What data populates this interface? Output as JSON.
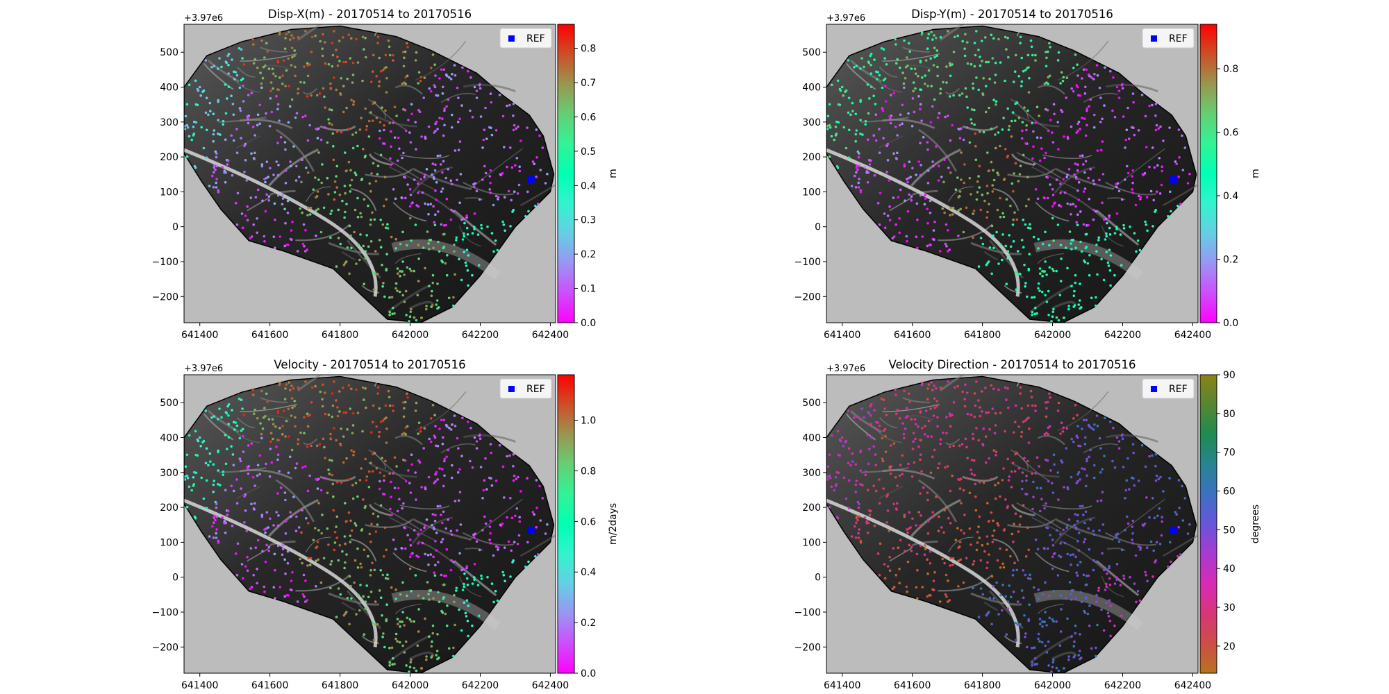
{
  "figure": {
    "legend_label": "REF",
    "offset_label": "+3.97e6",
    "xlim": [
      641355,
      642415
    ],
    "ylim": [
      -275,
      580
    ],
    "x_ticks": [
      641400,
      641600,
      641800,
      642000,
      642200,
      642400
    ],
    "x_tick_labels": [
      "641400",
      "641600",
      "641800",
      "642000",
      "642200",
      "642400"
    ],
    "y_ticks": [
      -200,
      -100,
      0,
      100,
      200,
      300,
      400,
      500
    ],
    "y_tick_labels": [
      "−200",
      "−100",
      "0",
      "100",
      "200",
      "300",
      "400",
      "500"
    ],
    "colors": {
      "no_data_background": "#bcbcbc",
      "terrain_dark": "#1c1c1c",
      "ref_marker": "#0000ff"
    }
  },
  "chart_data": [
    {
      "type": "scatter",
      "title": "Disp-X(m) - 20170514 to 20170516",
      "colorbar": {
        "label": "m",
        "min": 0,
        "max": 0.87,
        "colormap": "rainbow",
        "ticks": [
          0,
          0.1,
          0.2,
          0.3,
          0.4,
          0.5,
          0.6,
          0.7,
          0.8
        ],
        "tick_labels": [
          "0.0",
          "0.1",
          "0.2",
          "0.3",
          "0.4",
          "0.5",
          "0.6",
          "0.7",
          "0.8"
        ]
      },
      "ref_point": {
        "x": 642345,
        "y": 135
      },
      "zones": [
        {
          "x": 641420,
          "y": 350,
          "rx": 55,
          "ry": 150,
          "value": 0.3
        },
        {
          "x": 641850,
          "y": 420,
          "rx": 160,
          "ry": 120,
          "value": 0.72
        },
        {
          "x": 641600,
          "y": 200,
          "rx": 150,
          "ry": 120,
          "value": 0.15
        },
        {
          "x": 641800,
          "y": 130,
          "rx": 130,
          "ry": 110,
          "value": 0.65
        },
        {
          "x": 642130,
          "y": 200,
          "rx": 180,
          "ry": 180,
          "value": 0.1
        },
        {
          "x": 642000,
          "y": -80,
          "rx": 150,
          "ry": 90,
          "value": 0.62
        },
        {
          "x": 642250,
          "y": -60,
          "rx": 130,
          "ry": 100,
          "value": 0.4
        },
        {
          "x": 641600,
          "y": -10,
          "rx": 100,
          "ry": 50,
          "value": 0.05
        }
      ]
    },
    {
      "type": "scatter",
      "title": "Disp-Y(m) - 20170514 to 20170516",
      "colorbar": {
        "label": "m",
        "min": 0,
        "max": 0.94,
        "colormap": "rainbow",
        "ticks": [
          0,
          0.2,
          0.4,
          0.6,
          0.8
        ],
        "tick_labels": [
          "0.0",
          "0.2",
          "0.4",
          "0.6",
          "0.8"
        ]
      },
      "ref_point": {
        "x": 642345,
        "y": 135
      },
      "zones": [
        {
          "x": 641420,
          "y": 350,
          "rx": 55,
          "ry": 150,
          "value": 0.55
        },
        {
          "x": 641850,
          "y": 420,
          "rx": 160,
          "ry": 120,
          "value": 0.62
        },
        {
          "x": 641600,
          "y": 200,
          "rx": 150,
          "ry": 120,
          "value": 0.1
        },
        {
          "x": 641800,
          "y": 130,
          "rx": 130,
          "ry": 110,
          "value": 0.75
        },
        {
          "x": 642130,
          "y": 200,
          "rx": 180,
          "ry": 180,
          "value": 0.08
        },
        {
          "x": 642000,
          "y": -80,
          "rx": 150,
          "ry": 90,
          "value": 0.5
        },
        {
          "x": 642250,
          "y": -60,
          "rx": 130,
          "ry": 100,
          "value": 0.45
        },
        {
          "x": 641600,
          "y": -10,
          "rx": 100,
          "ry": 50,
          "value": 0.05
        }
      ]
    },
    {
      "type": "scatter",
      "title": "Velocity - 20170514 to 20170516",
      "colorbar": {
        "label": "m/2days",
        "min": 0,
        "max": 1.18,
        "colormap": "rainbow",
        "ticks": [
          0,
          0.2,
          0.4,
          0.6,
          0.8,
          1.0
        ],
        "tick_labels": [
          "0.0",
          "0.2",
          "0.4",
          "0.6",
          "0.8",
          "1.0"
        ]
      },
      "ref_point": {
        "x": 642345,
        "y": 135
      },
      "zones": [
        {
          "x": 641420,
          "y": 350,
          "rx": 55,
          "ry": 150,
          "value": 0.55
        },
        {
          "x": 641850,
          "y": 420,
          "rx": 160,
          "ry": 120,
          "value": 1.0
        },
        {
          "x": 641600,
          "y": 200,
          "rx": 150,
          "ry": 120,
          "value": 0.15
        },
        {
          "x": 641800,
          "y": 130,
          "rx": 130,
          "ry": 110,
          "value": 0.95
        },
        {
          "x": 642130,
          "y": 200,
          "rx": 180,
          "ry": 180,
          "value": 0.1
        },
        {
          "x": 642000,
          "y": -80,
          "rx": 150,
          "ry": 90,
          "value": 0.85
        },
        {
          "x": 642250,
          "y": -60,
          "rx": 130,
          "ry": 100,
          "value": 0.55
        },
        {
          "x": 641600,
          "y": -10,
          "rx": 100,
          "ry": 50,
          "value": 0.05
        }
      ]
    },
    {
      "type": "scatter",
      "title": "Velocity Direction - 20170514 to 20170516",
      "colorbar": {
        "label": "degrees",
        "min": 13,
        "max": 90,
        "colormap": "brg",
        "ticks": [
          20,
          30,
          40,
          50,
          60,
          70,
          80,
          90
        ],
        "tick_labels": [
          "20",
          "30",
          "40",
          "50",
          "60",
          "70",
          "80",
          "90"
        ]
      },
      "ref_point": {
        "x": 642345,
        "y": 135
      },
      "zones": [
        {
          "x": 641420,
          "y": 300,
          "rx": 60,
          "ry": 120,
          "value": 38
        },
        {
          "x": 641850,
          "y": 420,
          "rx": 160,
          "ry": 120,
          "value": 30
        },
        {
          "x": 641600,
          "y": 200,
          "rx": 150,
          "ry": 120,
          "value": 25
        },
        {
          "x": 641800,
          "y": 150,
          "rx": 130,
          "ry": 110,
          "value": 20
        },
        {
          "x": 642130,
          "y": 200,
          "rx": 180,
          "ry": 180,
          "value": 52
        },
        {
          "x": 642000,
          "y": -80,
          "rx": 150,
          "ry": 90,
          "value": 55
        },
        {
          "x": 642250,
          "y": -60,
          "rx": 130,
          "ry": 100,
          "value": 42
        },
        {
          "x": 641600,
          "y": -10,
          "rx": 100,
          "ry": 50,
          "value": 18
        }
      ]
    }
  ]
}
